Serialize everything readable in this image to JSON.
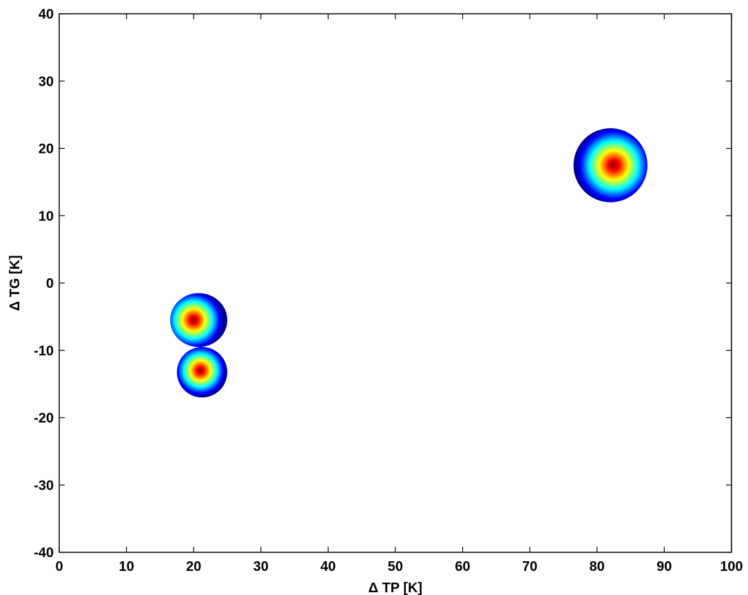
{
  "chart_data": {
    "type": "heatmap",
    "title": "",
    "xlabel": "Δ TP [K]",
    "ylabel": "Δ TG [K]",
    "xlim": [
      0,
      100
    ],
    "ylim": [
      -40,
      40
    ],
    "xticks": [
      0,
      10,
      20,
      30,
      40,
      50,
      60,
      70,
      80,
      90,
      100
    ],
    "yticks": [
      -40,
      -30,
      -20,
      -10,
      0,
      10,
      20,
      30,
      40
    ],
    "grid": false,
    "colormap": "jet",
    "colormap_stops": [
      "#00008f",
      "#0000ff",
      "#00ffff",
      "#ffff00",
      "#ff0000",
      "#800000"
    ],
    "density_clusters": [
      {
        "center_x": 20.0,
        "center_y": -5.5,
        "extent_x": [
          16.5,
          25.0
        ],
        "extent_y": [
          -9.5,
          -1.5
        ]
      },
      {
        "center_x": 21.0,
        "center_y": -13.0,
        "extent_x": [
          17.5,
          25.0
        ],
        "extent_y": [
          -17.0,
          -9.5
        ]
      },
      {
        "center_x": 82.5,
        "center_y": 17.5,
        "extent_x": [
          76.5,
          87.5
        ],
        "extent_y": [
          12.0,
          23.0
        ]
      }
    ]
  }
}
